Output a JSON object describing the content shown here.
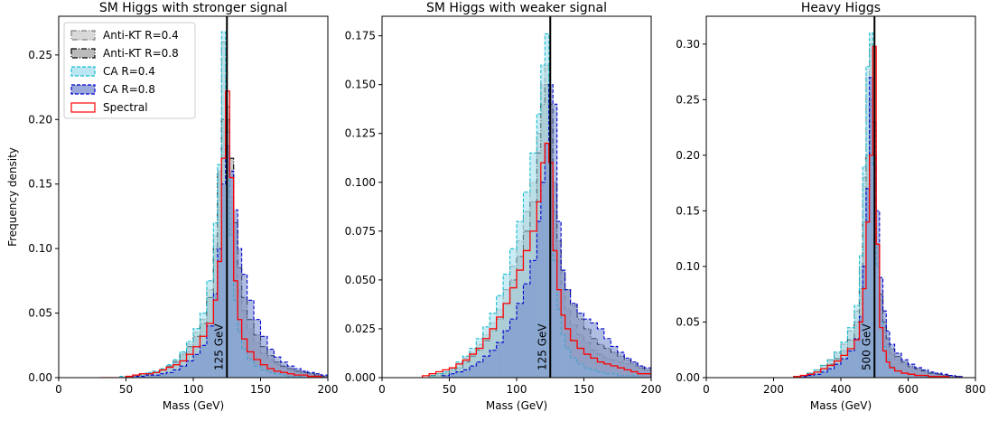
{
  "figure": {
    "ylabel": "Frequency density",
    "xlabel": "Mass (GeV)"
  },
  "legend": {
    "entries": [
      {
        "name": "Anti-KT R=0.4",
        "fill": "#c9c9c9",
        "stroke": "#7f7f7f",
        "dash": "6,2,1,2"
      },
      {
        "name": "Anti-KT R=0.8",
        "fill": "#9e9e9e",
        "stroke": "#000000",
        "dash": "6,2,1,2"
      },
      {
        "name": "CA R=0.4",
        "fill": "#9fdcec",
        "stroke": "#17becf",
        "dash": "4,2"
      },
      {
        "name": "CA R=0.8",
        "fill": "#6f86cc",
        "stroke": "#0000cc",
        "dash": "4,2"
      },
      {
        "name": "Spectral",
        "fill": "none",
        "stroke": "#ff0000",
        "dash": ""
      }
    ]
  },
  "chart_data": [
    {
      "type": "area",
      "title": "SM Higgs with stronger signal",
      "xlabel": "Mass (GeV)",
      "ylabel": "Frequency density",
      "xlim": [
        0,
        200
      ],
      "ylim": [
        0,
        0.28
      ],
      "xticks": [
        "0",
        "50",
        "100",
        "150",
        "200"
      ],
      "yticks": [
        "0.00",
        "0.05",
        "0.10",
        "0.15",
        "0.20",
        "0.25"
      ],
      "vline": {
        "x": 125,
        "label": "125 GeV"
      },
      "bin_edges": [
        30,
        35,
        40,
        45,
        50,
        55,
        60,
        65,
        70,
        75,
        80,
        85,
        90,
        95,
        100,
        105,
        110,
        115,
        118,
        121,
        124,
        127,
        130,
        133,
        136,
        140,
        145,
        150,
        155,
        160,
        165,
        170,
        175,
        180,
        185,
        190,
        195,
        200
      ],
      "series": [
        {
          "name": "Anti-KT R=0.4",
          "values": [
            0,
            0,
            0,
            0,
            0.001,
            0.002,
            0.002,
            0.003,
            0.004,
            0.006,
            0.009,
            0.013,
            0.019,
            0.026,
            0.035,
            0.045,
            0.068,
            0.11,
            0.16,
            0.26,
            0.21,
            0.14,
            0.09,
            0.068,
            0.052,
            0.038,
            0.027,
            0.019,
            0.014,
            0.01,
            0.008,
            0.006,
            0.005,
            0.004,
            0.003,
            0.002,
            0.001
          ]
        },
        {
          "name": "Anti-KT R=0.8",
          "values": [
            0,
            0,
            0,
            0,
            0.001,
            0.002,
            0.002,
            0.003,
            0.004,
            0.006,
            0.009,
            0.012,
            0.018,
            0.024,
            0.032,
            0.042,
            0.062,
            0.1,
            0.16,
            0.2,
            0.2,
            0.17,
            0.12,
            0.085,
            0.062,
            0.045,
            0.033,
            0.024,
            0.017,
            0.012,
            0.009,
            0.007,
            0.005,
            0.004,
            0.003,
            0.002,
            0.001
          ]
        },
        {
          "name": "CA R=0.4",
          "values": [
            0,
            0,
            0,
            0.001,
            0.001,
            0.002,
            0.003,
            0.004,
            0.005,
            0.007,
            0.01,
            0.014,
            0.02,
            0.028,
            0.038,
            0.05,
            0.075,
            0.12,
            0.165,
            0.268,
            0.19,
            0.11,
            0.06,
            0.035,
            0.022,
            0.014,
            0.009,
            0.006,
            0.004,
            0.003,
            0.002,
            0.001,
            0.001,
            0,
            0,
            0,
            0
          ]
        },
        {
          "name": "CA R=0.8",
          "values": [
            0,
            0,
            0,
            0,
            0,
            0.001,
            0.001,
            0.002,
            0.002,
            0.003,
            0.004,
            0.006,
            0.009,
            0.013,
            0.018,
            0.025,
            0.04,
            0.065,
            0.1,
            0.15,
            0.18,
            0.16,
            0.13,
            0.1,
            0.08,
            0.06,
            0.045,
            0.032,
            0.022,
            0.016,
            0.012,
            0.009,
            0.007,
            0.005,
            0.004,
            0.003,
            0.002
          ]
        },
        {
          "name": "Spectral",
          "values": [
            0,
            0,
            0,
            0,
            0.001,
            0.002,
            0.003,
            0.003,
            0.004,
            0.006,
            0.008,
            0.01,
            0.013,
            0.018,
            0.024,
            0.032,
            0.042,
            0.06,
            0.09,
            0.17,
            0.222,
            0.155,
            0.075,
            0.045,
            0.03,
            0.02,
            0.014,
            0.01,
            0.007,
            0.005,
            0.004,
            0.003,
            0.002,
            0.002,
            0.001,
            0.001,
            0
          ]
        }
      ]
    },
    {
      "type": "area",
      "title": "SM Higgs with weaker signal",
      "xlabel": "Mass (GeV)",
      "ylabel": "",
      "xlim": [
        0,
        200
      ],
      "ylim": [
        0,
        0.185
      ],
      "xticks": [
        "0",
        "50",
        "100",
        "150",
        "200"
      ],
      "yticks": [
        "0.000",
        "0.025",
        "0.050",
        "0.075",
        "0.100",
        "0.125",
        "0.150",
        "0.175"
      ],
      "vline": {
        "x": 125,
        "label": "125 GeV"
      },
      "bin_edges": [
        30,
        35,
        40,
        45,
        50,
        55,
        60,
        65,
        70,
        75,
        80,
        85,
        90,
        95,
        100,
        105,
        110,
        115,
        118,
        121,
        124,
        127,
        130,
        133,
        136,
        140,
        145,
        150,
        155,
        160,
        165,
        170,
        175,
        180,
        185,
        190,
        195,
        200
      ],
      "series": [
        {
          "name": "Anti-KT R=0.4",
          "values": [
            0,
            0.001,
            0.002,
            0.003,
            0.005,
            0.007,
            0.01,
            0.013,
            0.017,
            0.022,
            0.028,
            0.035,
            0.045,
            0.057,
            0.07,
            0.085,
            0.1,
            0.125,
            0.15,
            0.16,
            0.13,
            0.085,
            0.06,
            0.045,
            0.035,
            0.027,
            0.022,
            0.018,
            0.014,
            0.012,
            0.01,
            0.009,
            0.008,
            0.007,
            0.006,
            0.005,
            0.004
          ]
        },
        {
          "name": "Anti-KT R=0.8",
          "values": [
            0,
            0.001,
            0.001,
            0.002,
            0.004,
            0.005,
            0.008,
            0.011,
            0.014,
            0.019,
            0.024,
            0.03,
            0.038,
            0.05,
            0.062,
            0.075,
            0.09,
            0.115,
            0.14,
            0.15,
            0.14,
            0.1,
            0.07,
            0.055,
            0.045,
            0.037,
            0.03,
            0.025,
            0.02,
            0.017,
            0.015,
            0.013,
            0.011,
            0.009,
            0.007,
            0.005,
            0.004
          ]
        },
        {
          "name": "CA R=0.4",
          "values": [
            0,
            0.001,
            0.002,
            0.003,
            0.005,
            0.008,
            0.011,
            0.015,
            0.02,
            0.026,
            0.033,
            0.042,
            0.053,
            0.066,
            0.08,
            0.095,
            0.115,
            0.135,
            0.16,
            0.176,
            0.11,
            0.06,
            0.035,
            0.022,
            0.015,
            0.01,
            0.007,
            0.005,
            0.004,
            0.003,
            0.002,
            0.002,
            0.001,
            0.001,
            0.001,
            0,
            0
          ]
        },
        {
          "name": "CA R=0.8",
          "values": [
            0,
            0,
            0,
            0.001,
            0.002,
            0.003,
            0.004,
            0.006,
            0.008,
            0.011,
            0.014,
            0.018,
            0.024,
            0.03,
            0.038,
            0.048,
            0.06,
            0.08,
            0.1,
            0.12,
            0.15,
            0.14,
            0.08,
            0.055,
            0.045,
            0.038,
            0.033,
            0.03,
            0.028,
            0.025,
            0.02,
            0.016,
            0.013,
            0.01,
            0.008,
            0.006,
            0.005
          ]
        },
        {
          "name": "Spectral",
          "values": [
            0.001,
            0.002,
            0.003,
            0.004,
            0.005,
            0.007,
            0.009,
            0.012,
            0.015,
            0.02,
            0.025,
            0.031,
            0.038,
            0.046,
            0.055,
            0.065,
            0.075,
            0.09,
            0.11,
            0.12,
            0.11,
            0.065,
            0.045,
            0.032,
            0.025,
            0.019,
            0.015,
            0.012,
            0.01,
            0.008,
            0.007,
            0.006,
            0.005,
            0.004,
            0.003,
            0.002,
            0.002
          ]
        }
      ]
    },
    {
      "type": "area",
      "title": "Heavy Higgs",
      "xlabel": "Mass (GeV)",
      "ylabel": "",
      "xlim": [
        0,
        800
      ],
      "ylim": [
        0,
        0.325
      ],
      "xticks": [
        "0",
        "200",
        "400",
        "600",
        "800"
      ],
      "yticks": [
        "0.00",
        "0.05",
        "0.10",
        "0.15",
        "0.20",
        "0.25",
        "0.30"
      ],
      "vline": {
        "x": 500,
        "label": "500 GeV"
      },
      "bin_edges": [
        260,
        280,
        300,
        320,
        340,
        360,
        380,
        400,
        420,
        440,
        455,
        465,
        475,
        485,
        495,
        505,
        515,
        525,
        535,
        545,
        560,
        580,
        600,
        620,
        640,
        660,
        680,
        700,
        720,
        740,
        760
      ],
      "series": [
        {
          "name": "Anti-KT R=0.4",
          "values": [
            0.001,
            0.002,
            0.004,
            0.007,
            0.011,
            0.016,
            0.022,
            0.03,
            0.042,
            0.06,
            0.1,
            0.18,
            0.27,
            0.3,
            0.2,
            0.12,
            0.07,
            0.045,
            0.03,
            0.022,
            0.016,
            0.012,
            0.009,
            0.007,
            0.005,
            0.004,
            0.003,
            0.002,
            0.001,
            0.001
          ]
        },
        {
          "name": "Anti-KT R=0.8",
          "values": [
            0.001,
            0.002,
            0.003,
            0.005,
            0.008,
            0.012,
            0.017,
            0.024,
            0.034,
            0.05,
            0.08,
            0.14,
            0.2,
            0.25,
            0.2,
            0.12,
            0.075,
            0.05,
            0.035,
            0.026,
            0.019,
            0.014,
            0.01,
            0.008,
            0.006,
            0.004,
            0.003,
            0.002,
            0.001,
            0.001
          ]
        },
        {
          "name": "CA R=0.4",
          "values": [
            0.001,
            0.002,
            0.004,
            0.007,
            0.011,
            0.016,
            0.023,
            0.032,
            0.045,
            0.065,
            0.11,
            0.19,
            0.28,
            0.31,
            0.19,
            0.1,
            0.05,
            0.028,
            0.016,
            0.01,
            0.006,
            0.004,
            0.003,
            0.002,
            0.001,
            0.001,
            0,
            0,
            0,
            0
          ]
        },
        {
          "name": "CA R=0.8",
          "values": [
            0,
            0.001,
            0.002,
            0.003,
            0.005,
            0.008,
            0.012,
            0.017,
            0.024,
            0.035,
            0.055,
            0.1,
            0.17,
            0.27,
            0.23,
            0.15,
            0.09,
            0.06,
            0.042,
            0.03,
            0.022,
            0.016,
            0.012,
            0.009,
            0.007,
            0.005,
            0.004,
            0.003,
            0.002,
            0.001
          ]
        },
        {
          "name": "Spectral",
          "values": [
            0.001,
            0.002,
            0.003,
            0.005,
            0.008,
            0.011,
            0.015,
            0.02,
            0.026,
            0.034,
            0.05,
            0.08,
            0.14,
            0.2,
            0.298,
            0.12,
            0.045,
            0.024,
            0.014,
            0.009,
            0.006,
            0.004,
            0.003,
            0.002,
            0.002,
            0.001,
            0.001,
            0.001,
            0,
            0
          ]
        }
      ]
    }
  ]
}
